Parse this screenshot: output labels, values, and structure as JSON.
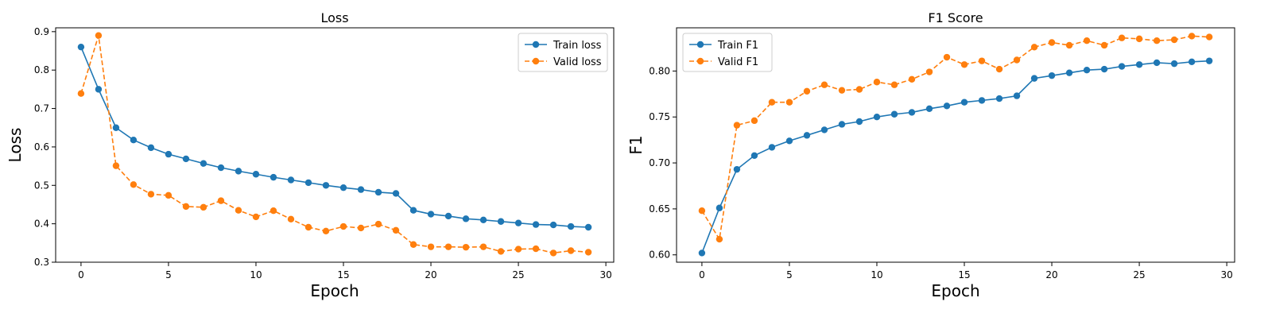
{
  "chart_data": [
    {
      "type": "line",
      "title": "Loss",
      "xlabel": "Epoch",
      "ylabel": "Loss",
      "xlim": [
        -1.45,
        30.45
      ],
      "ylim": [
        0.3,
        0.91
      ],
      "xticks": [
        0,
        5,
        10,
        15,
        20,
        25,
        30
      ],
      "yticks": [
        0.3,
        0.4,
        0.5,
        0.6,
        0.7,
        0.8,
        0.9
      ],
      "ytick_decimals": 1,
      "grid": false,
      "legend_position": "top-right",
      "x": [
        0,
        1,
        2,
        3,
        4,
        5,
        6,
        7,
        8,
        9,
        10,
        11,
        12,
        13,
        14,
        15,
        16,
        17,
        18,
        19,
        20,
        21,
        22,
        23,
        24,
        25,
        26,
        27,
        28,
        29
      ],
      "series": [
        {
          "name": "Train loss",
          "color": "#1f77b4",
          "style": "solid",
          "values": [
            0.86,
            0.75,
            0.65,
            0.618,
            0.598,
            0.581,
            0.569,
            0.557,
            0.546,
            0.537,
            0.529,
            0.521,
            0.514,
            0.507,
            0.5,
            0.494,
            0.489,
            0.482,
            0.479,
            0.435,
            0.425,
            0.42,
            0.413,
            0.41,
            0.406,
            0.402,
            0.398,
            0.397,
            0.393,
            0.391
          ]
        },
        {
          "name": "Valid loss",
          "color": "#ff7f0e",
          "style": "dashed",
          "values": [
            0.739,
            0.89,
            0.551,
            0.502,
            0.477,
            0.474,
            0.445,
            0.443,
            0.46,
            0.435,
            0.418,
            0.434,
            0.412,
            0.391,
            0.381,
            0.393,
            0.389,
            0.399,
            0.383,
            0.346,
            0.34,
            0.34,
            0.339,
            0.34,
            0.328,
            0.334,
            0.335,
            0.324,
            0.33,
            0.326
          ]
        }
      ]
    },
    {
      "type": "line",
      "title": "F1 Score",
      "xlabel": "Epoch",
      "ylabel": "F1",
      "xlim": [
        -1.45,
        30.45
      ],
      "ylim": [
        0.592,
        0.847
      ],
      "xticks": [
        0,
        5,
        10,
        15,
        20,
        25,
        30
      ],
      "yticks": [
        0.6,
        0.65,
        0.7,
        0.75,
        0.8
      ],
      "ytick_decimals": 2,
      "grid": false,
      "legend_position": "top-left",
      "x": [
        0,
        1,
        2,
        3,
        4,
        5,
        6,
        7,
        8,
        9,
        10,
        11,
        12,
        13,
        14,
        15,
        16,
        17,
        18,
        19,
        20,
        21,
        22,
        23,
        24,
        25,
        26,
        27,
        28,
        29
      ],
      "series": [
        {
          "name": "Train F1",
          "color": "#1f77b4",
          "style": "solid",
          "values": [
            0.602,
            0.651,
            0.693,
            0.708,
            0.717,
            0.724,
            0.73,
            0.736,
            0.742,
            0.745,
            0.75,
            0.753,
            0.755,
            0.759,
            0.762,
            0.766,
            0.768,
            0.77,
            0.773,
            0.792,
            0.795,
            0.798,
            0.801,
            0.802,
            0.805,
            0.807,
            0.809,
            0.808,
            0.81,
            0.811
          ]
        },
        {
          "name": "Valid F1",
          "color": "#ff7f0e",
          "style": "dashed",
          "values": [
            0.648,
            0.617,
            0.741,
            0.746,
            0.766,
            0.766,
            0.778,
            0.785,
            0.779,
            0.78,
            0.788,
            0.785,
            0.791,
            0.799,
            0.815,
            0.807,
            0.811,
            0.802,
            0.812,
            0.826,
            0.831,
            0.828,
            0.833,
            0.828,
            0.836,
            0.835,
            0.833,
            0.834,
            0.838,
            0.837
          ]
        }
      ]
    }
  ]
}
